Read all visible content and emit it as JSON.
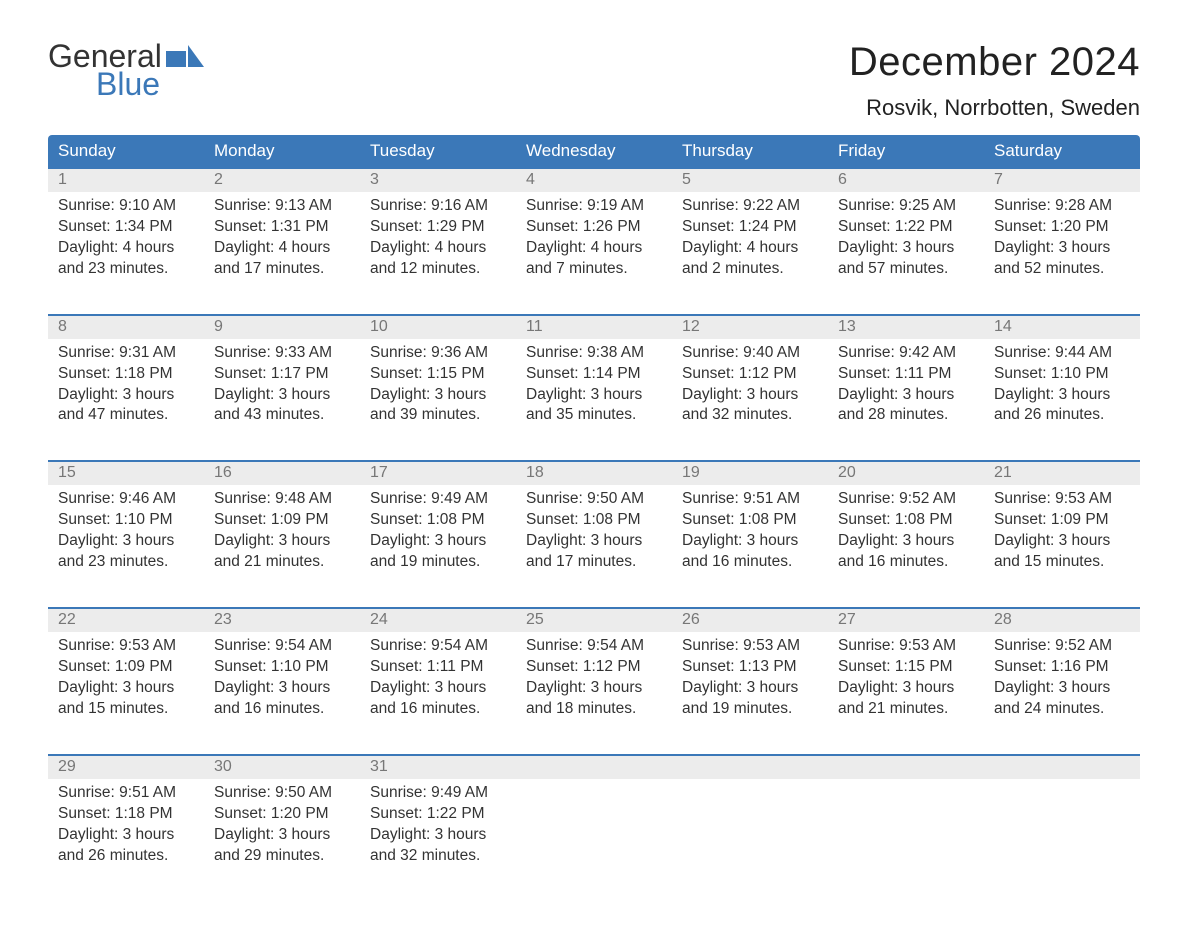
{
  "logo": {
    "line1": "General",
    "line2": "Blue",
    "flag_color": "#3b78b8"
  },
  "header": {
    "month_title": "December 2024",
    "location": "Rosvik, Norrbotten, Sweden"
  },
  "styling": {
    "header_bg": "#3b78b8",
    "header_text": "#ffffff",
    "daynum_bg": "#ececec",
    "daynum_text": "#777777",
    "row_divider": "#3b78b8",
    "body_text": "#333333",
    "title_fontsize": 40,
    "location_fontsize": 22,
    "weekday_fontsize": 17,
    "cell_fontsize": 15.5
  },
  "weekdays": [
    "Sunday",
    "Monday",
    "Tuesday",
    "Wednesday",
    "Thursday",
    "Friday",
    "Saturday"
  ],
  "weeks": [
    {
      "days": [
        {
          "num": "1",
          "sunrise": "9:10 AM",
          "sunset": "1:34 PM",
          "daylight_h": 4,
          "daylight_m": 23
        },
        {
          "num": "2",
          "sunrise": "9:13 AM",
          "sunset": "1:31 PM",
          "daylight_h": 4,
          "daylight_m": 17
        },
        {
          "num": "3",
          "sunrise": "9:16 AM",
          "sunset": "1:29 PM",
          "daylight_h": 4,
          "daylight_m": 12
        },
        {
          "num": "4",
          "sunrise": "9:19 AM",
          "sunset": "1:26 PM",
          "daylight_h": 4,
          "daylight_m": 7
        },
        {
          "num": "5",
          "sunrise": "9:22 AM",
          "sunset": "1:24 PM",
          "daylight_h": 4,
          "daylight_m": 2
        },
        {
          "num": "6",
          "sunrise": "9:25 AM",
          "sunset": "1:22 PM",
          "daylight_h": 3,
          "daylight_m": 57
        },
        {
          "num": "7",
          "sunrise": "9:28 AM",
          "sunset": "1:20 PM",
          "daylight_h": 3,
          "daylight_m": 52
        }
      ]
    },
    {
      "days": [
        {
          "num": "8",
          "sunrise": "9:31 AM",
          "sunset": "1:18 PM",
          "daylight_h": 3,
          "daylight_m": 47
        },
        {
          "num": "9",
          "sunrise": "9:33 AM",
          "sunset": "1:17 PM",
          "daylight_h": 3,
          "daylight_m": 43
        },
        {
          "num": "10",
          "sunrise": "9:36 AM",
          "sunset": "1:15 PM",
          "daylight_h": 3,
          "daylight_m": 39
        },
        {
          "num": "11",
          "sunrise": "9:38 AM",
          "sunset": "1:14 PM",
          "daylight_h": 3,
          "daylight_m": 35
        },
        {
          "num": "12",
          "sunrise": "9:40 AM",
          "sunset": "1:12 PM",
          "daylight_h": 3,
          "daylight_m": 32
        },
        {
          "num": "13",
          "sunrise": "9:42 AM",
          "sunset": "1:11 PM",
          "daylight_h": 3,
          "daylight_m": 28
        },
        {
          "num": "14",
          "sunrise": "9:44 AM",
          "sunset": "1:10 PM",
          "daylight_h": 3,
          "daylight_m": 26
        }
      ]
    },
    {
      "days": [
        {
          "num": "15",
          "sunrise": "9:46 AM",
          "sunset": "1:10 PM",
          "daylight_h": 3,
          "daylight_m": 23
        },
        {
          "num": "16",
          "sunrise": "9:48 AM",
          "sunset": "1:09 PM",
          "daylight_h": 3,
          "daylight_m": 21
        },
        {
          "num": "17",
          "sunrise": "9:49 AM",
          "sunset": "1:08 PM",
          "daylight_h": 3,
          "daylight_m": 19
        },
        {
          "num": "18",
          "sunrise": "9:50 AM",
          "sunset": "1:08 PM",
          "daylight_h": 3,
          "daylight_m": 17
        },
        {
          "num": "19",
          "sunrise": "9:51 AM",
          "sunset": "1:08 PM",
          "daylight_h": 3,
          "daylight_m": 16
        },
        {
          "num": "20",
          "sunrise": "9:52 AM",
          "sunset": "1:08 PM",
          "daylight_h": 3,
          "daylight_m": 16
        },
        {
          "num": "21",
          "sunrise": "9:53 AM",
          "sunset": "1:09 PM",
          "daylight_h": 3,
          "daylight_m": 15
        }
      ]
    },
    {
      "days": [
        {
          "num": "22",
          "sunrise": "9:53 AM",
          "sunset": "1:09 PM",
          "daylight_h": 3,
          "daylight_m": 15
        },
        {
          "num": "23",
          "sunrise": "9:54 AM",
          "sunset": "1:10 PM",
          "daylight_h": 3,
          "daylight_m": 16
        },
        {
          "num": "24",
          "sunrise": "9:54 AM",
          "sunset": "1:11 PM",
          "daylight_h": 3,
          "daylight_m": 16
        },
        {
          "num": "25",
          "sunrise": "9:54 AM",
          "sunset": "1:12 PM",
          "daylight_h": 3,
          "daylight_m": 18
        },
        {
          "num": "26",
          "sunrise": "9:53 AM",
          "sunset": "1:13 PM",
          "daylight_h": 3,
          "daylight_m": 19
        },
        {
          "num": "27",
          "sunrise": "9:53 AM",
          "sunset": "1:15 PM",
          "daylight_h": 3,
          "daylight_m": 21
        },
        {
          "num": "28",
          "sunrise": "9:52 AM",
          "sunset": "1:16 PM",
          "daylight_h": 3,
          "daylight_m": 24
        }
      ]
    },
    {
      "days": [
        {
          "num": "29",
          "sunrise": "9:51 AM",
          "sunset": "1:18 PM",
          "daylight_h": 3,
          "daylight_m": 26
        },
        {
          "num": "30",
          "sunrise": "9:50 AM",
          "sunset": "1:20 PM",
          "daylight_h": 3,
          "daylight_m": 29
        },
        {
          "num": "31",
          "sunrise": "9:49 AM",
          "sunset": "1:22 PM",
          "daylight_h": 3,
          "daylight_m": 32
        },
        {
          "empty": true
        },
        {
          "empty": true
        },
        {
          "empty": true
        },
        {
          "empty": true
        }
      ]
    }
  ],
  "labels": {
    "sunrise_prefix": "Sunrise: ",
    "sunset_prefix": "Sunset: ",
    "daylight_prefix": "Daylight: ",
    "hours_word": " hours",
    "and_word": "and ",
    "minutes_word": " minutes."
  }
}
